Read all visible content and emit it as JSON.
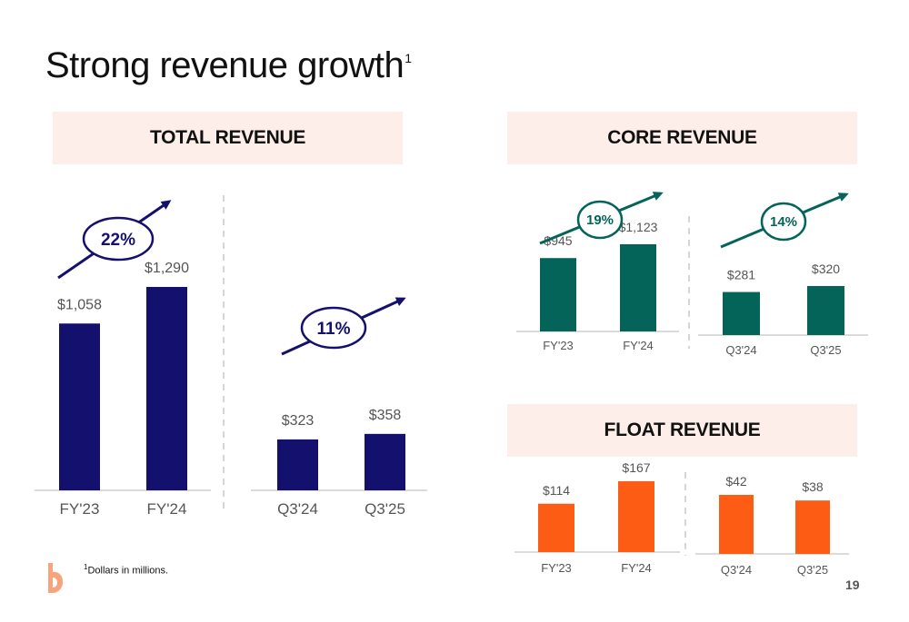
{
  "slide": {
    "title": "Strong revenue growth",
    "title_sup": "1",
    "footnote_sup": "1",
    "footnote": "Dollars in millions.",
    "page_number": "19"
  },
  "colors": {
    "total": "#14106e",
    "core": "#04645a",
    "float": "#fc5c14",
    "header_bg": "#fdeee9"
  },
  "chart_data": [
    {
      "id": "total-annual",
      "panel": "TOTAL REVENUE",
      "type": "bar",
      "color": "#14106e",
      "categories": [
        "FY'23",
        "FY'24"
      ],
      "values": [
        1058,
        1290
      ],
      "labels": [
        "$1,058",
        "$1,290"
      ],
      "growth": "22%",
      "ylim": [
        0,
        1290
      ]
    },
    {
      "id": "total-quarter",
      "panel": "TOTAL REVENUE",
      "type": "bar",
      "color": "#14106e",
      "categories": [
        "Q3'24",
        "Q3'25"
      ],
      "values": [
        323,
        358
      ],
      "labels": [
        "$323",
        "$358"
      ],
      "growth": "11%",
      "ylim": [
        0,
        1290
      ]
    },
    {
      "id": "core-annual",
      "panel": "CORE REVENUE",
      "type": "bar",
      "color": "#04645a",
      "categories": [
        "FY'23",
        "FY'24"
      ],
      "values": [
        945,
        1123
      ],
      "labels": [
        "$945",
        "$1,123"
      ],
      "growth": "19%",
      "ylim": [
        0,
        1123
      ]
    },
    {
      "id": "core-quarter",
      "panel": "CORE REVENUE",
      "type": "bar",
      "color": "#04645a",
      "categories": [
        "Q3'24",
        "Q3'25"
      ],
      "values": [
        281,
        320
      ],
      "labels": [
        "$281",
        "$320"
      ],
      "growth": "14%",
      "ylim": [
        0,
        320
      ]
    },
    {
      "id": "float-annual",
      "panel": "FLOAT REVENUE",
      "type": "bar",
      "color": "#fc5c14",
      "categories": [
        "FY'23",
        "FY'24"
      ],
      "values": [
        114,
        167
      ],
      "labels": [
        "$114",
        "$167"
      ],
      "growth": "",
      "ylim": [
        0,
        167
      ]
    },
    {
      "id": "float-quarter",
      "panel": "FLOAT REVENUE",
      "type": "bar",
      "color": "#fc5c14",
      "categories": [
        "Q3'24",
        "Q3'25"
      ],
      "values": [
        42,
        38
      ],
      "labels": [
        "$42",
        "$38"
      ],
      "growth": "",
      "ylim": [
        0,
        42
      ]
    }
  ],
  "panels": {
    "total": "TOTAL REVENUE",
    "core": "CORE REVENUE",
    "float": "FLOAT REVENUE"
  }
}
